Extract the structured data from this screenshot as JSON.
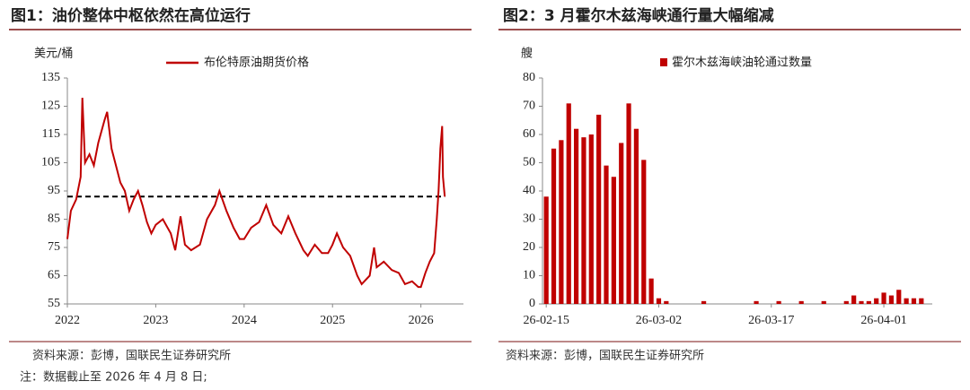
{
  "chart_data": [
    {
      "type": "line",
      "title": "图1：油价整体中枢依然在高位运行",
      "ylabel": "美元/桶",
      "series_name": "布伦特原油期货价格",
      "color": "#c00000",
      "x": [
        2022.0,
        2022.04,
        2022.1,
        2022.15,
        2022.17,
        2022.2,
        2022.25,
        2022.3,
        2022.35,
        2022.42,
        2022.45,
        2022.5,
        2022.55,
        2022.6,
        2022.65,
        2022.7,
        2022.75,
        2022.8,
        2022.85,
        2022.9,
        2022.95,
        2023.0,
        2023.08,
        2023.17,
        2023.22,
        2023.28,
        2023.33,
        2023.4,
        2023.5,
        2023.58,
        2023.67,
        2023.72,
        2023.8,
        2023.88,
        2023.95,
        2024.0,
        2024.08,
        2024.17,
        2024.25,
        2024.33,
        2024.42,
        2024.5,
        2024.58,
        2024.67,
        2024.72,
        2024.8,
        2024.88,
        2024.95,
        2025.0,
        2025.05,
        2025.12,
        2025.2,
        2025.28,
        2025.33,
        2025.42,
        2025.47,
        2025.5,
        2025.58,
        2025.67,
        2025.75,
        2025.82,
        2025.9,
        2025.97,
        2026.0,
        2026.05,
        2026.1,
        2026.15,
        2026.18,
        2026.2,
        2026.22,
        2026.24,
        2026.25,
        2026.27
      ],
      "values": [
        78,
        88,
        92,
        100,
        128,
        105,
        108,
        104,
        112,
        120,
        123,
        110,
        104,
        98,
        95,
        88,
        92,
        95,
        90,
        84,
        80,
        83,
        85,
        80,
        74,
        86,
        76,
        74,
        76,
        85,
        90,
        95,
        88,
        82,
        78,
        78,
        82,
        84,
        90,
        83,
        80,
        86,
        80,
        74,
        72,
        76,
        73,
        73,
        76,
        80,
        75,
        72,
        65,
        62,
        65,
        75,
        68,
        70,
        67,
        66,
        62,
        63,
        61,
        61,
        66,
        70,
        73,
        85,
        95,
        110,
        118,
        100,
        93
      ],
      "hline": 93,
      "xlim": [
        2022,
        2026.4
      ],
      "xticks": [
        2022,
        2023,
        2024,
        2025,
        2026
      ],
      "ylim": [
        55,
        135
      ],
      "yticks": [
        55,
        65,
        75,
        85,
        95,
        105,
        115,
        125,
        135
      ],
      "source": "资料来源：彭博，国联民生证券研究所",
      "note": "注：数据截止至 2026 年 4 月 8 日;"
    },
    {
      "type": "bar",
      "title": "图2：3 月霍尔木兹海峡通行量大幅缩减",
      "ylabel": "艘",
      "series_name": "霍尔木兹海峡油轮通过数量",
      "color": "#c00000",
      "categories": [
        "26-02-15",
        null,
        null,
        null,
        null,
        null,
        null,
        null,
        null,
        null,
        null,
        null,
        null,
        null,
        null,
        "26-03-02",
        null,
        null,
        null,
        null,
        null,
        null,
        null,
        null,
        null,
        null,
        null,
        null,
        null,
        null,
        "26-03-17",
        null,
        null,
        null,
        null,
        null,
        null,
        null,
        null,
        null,
        null,
        null,
        null,
        null,
        null,
        "26-04-01",
        null,
        null,
        null,
        null,
        null
      ],
      "values": [
        38,
        55,
        58,
        71,
        62,
        59,
        60,
        67,
        49,
        45,
        57,
        71,
        62,
        51,
        9,
        2,
        1,
        0,
        0,
        0,
        0,
        1,
        0,
        0,
        0,
        0,
        0,
        0,
        1,
        0,
        0,
        1,
        0,
        0,
        1,
        0,
        0,
        1,
        0,
        0,
        1,
        3,
        1,
        1,
        2,
        4,
        3,
        5,
        2,
        2,
        2
      ],
      "ylim": [
        0,
        80
      ],
      "yticks": [
        0,
        10,
        20,
        30,
        40,
        50,
        60,
        70,
        80
      ],
      "source": "资料来源：彭博，国联民生证券研究所"
    }
  ]
}
